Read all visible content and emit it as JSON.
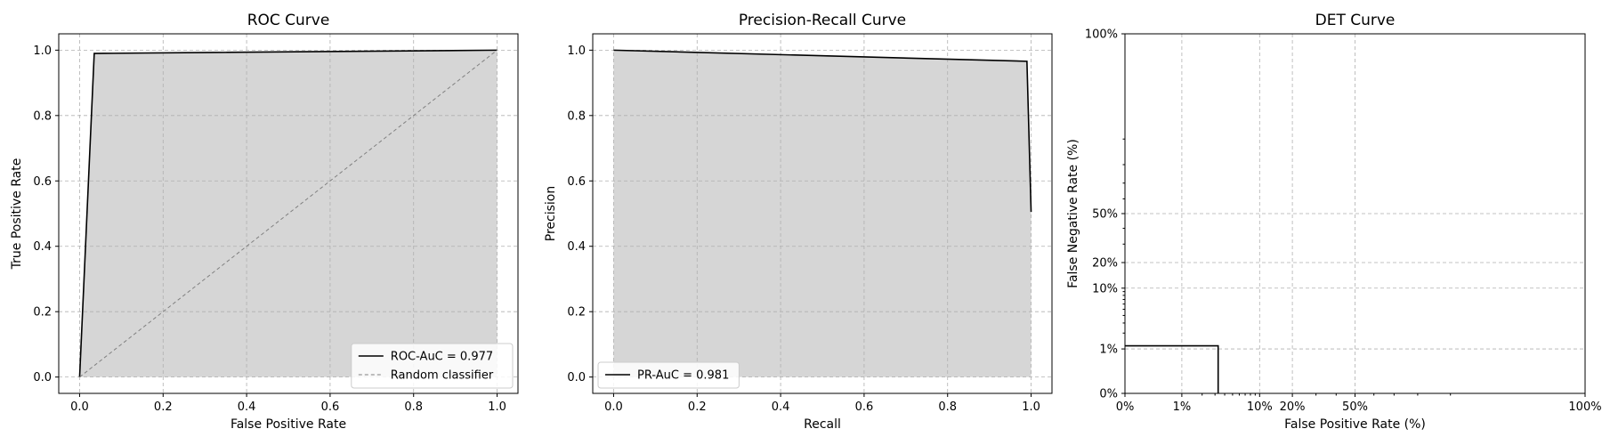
{
  "chart_data": [
    {
      "type": "line",
      "title": "ROC Curve",
      "xlabel": "False Positive Rate",
      "ylabel": "True Positive Rate",
      "xlim": [
        -0.05,
        1.05
      ],
      "ylim": [
        -0.05,
        1.05
      ],
      "xticks": [
        0.0,
        0.2,
        0.4,
        0.6,
        0.8,
        1.0
      ],
      "yticks": [
        0.0,
        0.2,
        0.4,
        0.6,
        0.8,
        1.0
      ],
      "xtick_labels": [
        "0.0",
        "0.2",
        "0.4",
        "0.6",
        "0.8",
        "1.0"
      ],
      "ytick_labels": [
        "0.0",
        "0.2",
        "0.4",
        "0.6",
        "0.8",
        "1.0"
      ],
      "grid": true,
      "legend_position": "lower-right",
      "series": [
        {
          "name": "ROC-AuC = 0.977",
          "x": [
            0.0,
            0.035,
            1.0
          ],
          "y": [
            0.0,
            0.99,
            1.0
          ],
          "color": "#000000",
          "style": "solid",
          "fill": "#d6d6d6"
        },
        {
          "name": "Random classifier",
          "x": [
            0.0,
            1.0
          ],
          "y": [
            0.0,
            1.0
          ],
          "color": "#808080",
          "style": "dashed"
        }
      ]
    },
    {
      "type": "line",
      "title": "Precision-Recall Curve",
      "xlabel": "Recall",
      "ylabel": "Precision",
      "xlim": [
        -0.05,
        1.05
      ],
      "ylim": [
        -0.05,
        1.05
      ],
      "xticks": [
        0.0,
        0.2,
        0.4,
        0.6,
        0.8,
        1.0
      ],
      "yticks": [
        0.0,
        0.2,
        0.4,
        0.6,
        0.8,
        1.0
      ],
      "xtick_labels": [
        "0.0",
        "0.2",
        "0.4",
        "0.6",
        "0.8",
        "1.0"
      ],
      "ytick_labels": [
        "0.0",
        "0.2",
        "0.4",
        "0.6",
        "0.8",
        "1.0"
      ],
      "grid": true,
      "legend_position": "lower-left",
      "series": [
        {
          "name": "PR-AuC = 0.981",
          "x": [
            0.0,
            0.99,
            1.0
          ],
          "y": [
            1.0,
            0.966,
            0.505
          ],
          "color": "#000000",
          "style": "solid",
          "fill": "#d6d6d6"
        }
      ]
    },
    {
      "type": "line",
      "title": "DET Curve",
      "xlabel": "False Positive Rate (%)",
      "ylabel": "False Negative Rate (%)",
      "scale": "probit",
      "xlim": [
        0.001,
        0.999
      ],
      "ylim": [
        0.001,
        0.999
      ],
      "xticks": [
        0.001,
        0.01,
        0.1,
        0.2,
        0.5,
        0.999
      ],
      "yticks": [
        0.001,
        0.01,
        0.1,
        0.2,
        0.5,
        0.999
      ],
      "xtick_labels": [
        "0%",
        "1%",
        "10%",
        "20%",
        "50%",
        "100%"
      ],
      "ytick_labels": [
        "0%",
        "1%",
        "10%",
        "20%",
        "50%",
        "100%"
      ],
      "grid": true,
      "series": [
        {
          "x": [
            0.001,
            0.033,
            0.033
          ],
          "y": [
            0.0115,
            0.0115,
            0.001
          ],
          "color": "#000000",
          "style": "solid"
        }
      ]
    }
  ]
}
